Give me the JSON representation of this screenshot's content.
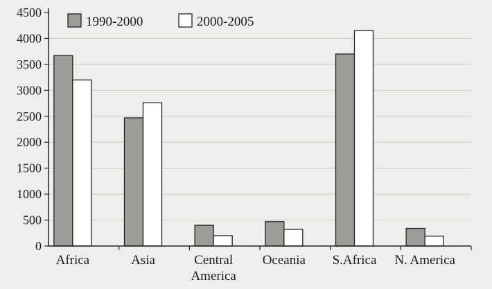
{
  "chart_data": {
    "type": "bar",
    "title": "",
    "xlabel": "",
    "ylabel": "",
    "categories": [
      [
        "Africa"
      ],
      [
        "Asia"
      ],
      [
        "Central",
        "America"
      ],
      [
        "Oceania"
      ],
      [
        "S.Africa"
      ],
      [
        "N. America"
      ]
    ],
    "series": [
      {
        "name": "1990-2000",
        "values": [
          3670,
          2470,
          400,
          470,
          3700,
          340
        ],
        "color": "#9c9c98"
      },
      {
        "name": "2000-2005",
        "values": [
          3200,
          2760,
          200,
          320,
          4150,
          190
        ],
        "color": "#ffffff"
      }
    ],
    "ylim": [
      0,
      4500
    ],
    "yticks": [
      0,
      500,
      1000,
      1500,
      2000,
      2500,
      3000,
      3500,
      4000,
      4500
    ],
    "grid": true,
    "gridlines": [
      4000,
      3500,
      3000,
      2500,
      2000,
      1500,
      1000,
      500
    ],
    "legend_position": "top-left",
    "colors": {
      "background": "#eeeeec",
      "axis": "#222222",
      "grid": "#c9c9c6",
      "bar_outline": "#222222"
    }
  }
}
